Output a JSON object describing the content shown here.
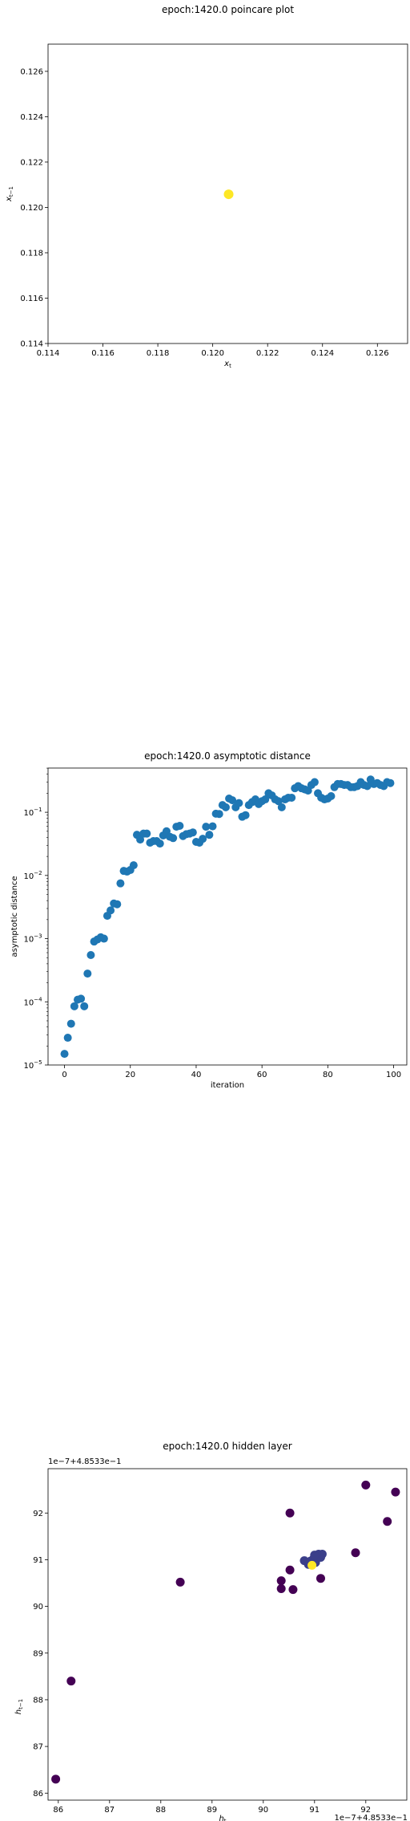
{
  "chart_data": [
    {
      "type": "scatter",
      "title": "epoch:1420.0 poincare plot",
      "xlabel": "x_t",
      "ylabel": "x_{t-1}",
      "xlim": [
        0.114,
        0.1271
      ],
      "ylim": [
        0.114,
        0.1272
      ],
      "xticks": [
        "0.114",
        "0.116",
        "0.118",
        "0.120",
        "0.122",
        "0.124",
        "0.126"
      ],
      "yticks": [
        "0.114",
        "0.116",
        "0.118",
        "0.120",
        "0.122",
        "0.124",
        "0.126"
      ],
      "xtick_values": [
        0.114,
        0.116,
        0.118,
        0.12,
        0.122,
        0.124,
        0.126
      ],
      "ytick_values": [
        0.114,
        0.116,
        0.118,
        0.12,
        0.122,
        0.124,
        0.126
      ],
      "points": [
        {
          "x": 0.12058,
          "y": 0.12058,
          "color": "#fde725"
        }
      ]
    },
    {
      "type": "scatter",
      "title": "epoch:1420.0 asymptotic distance",
      "xlabel": "iteration",
      "ylabel": "asymptotic distance",
      "xlim": [
        -5,
        104
      ],
      "yscale": "log",
      "ylim_log10": [
        -5,
        -0.3
      ],
      "xticks": [
        "0",
        "20",
        "40",
        "60",
        "80",
        "100"
      ],
      "xtick_values": [
        0,
        20,
        40,
        60,
        80,
        100
      ],
      "yticks": [
        {
          "mantissa": "10",
          "exp": "−5",
          "value": -5
        },
        {
          "mantissa": "10",
          "exp": "−4",
          "value": -4
        },
        {
          "mantissa": "10",
          "exp": "−3",
          "value": -3
        },
        {
          "mantissa": "10",
          "exp": "−2",
          "value": -2
        },
        {
          "mantissa": "10",
          "exp": "−1",
          "value": -1
        }
      ],
      "color": "#1f77b4",
      "x": [
        0,
        1,
        2,
        3,
        4,
        5,
        6,
        7,
        8,
        9,
        10,
        11,
        12,
        13,
        14,
        15,
        16,
        17,
        18,
        19,
        20,
        21,
        22,
        23,
        24,
        25,
        26,
        27,
        28,
        29,
        30,
        31,
        32,
        33,
        34,
        35,
        36,
        37,
        38,
        39,
        40,
        41,
        42,
        43,
        44,
        45,
        46,
        47,
        48,
        49,
        50,
        51,
        52,
        53,
        54,
        55,
        56,
        57,
        58,
        59,
        60,
        61,
        62,
        63,
        64,
        65,
        66,
        67,
        68,
        69,
        70,
        71,
        72,
        73,
        74,
        75,
        76,
        77,
        78,
        79,
        80,
        81,
        82,
        83,
        84,
        85,
        86,
        87,
        88,
        89,
        90,
        91,
        92,
        93,
        94,
        95,
        96,
        97,
        98,
        99
      ],
      "y": [
        1.5e-05,
        2.7e-05,
        4.5e-05,
        8.5e-05,
        0.000108,
        0.000112,
        8.5e-05,
        0.00028,
        0.00055,
        0.0009,
        0.00097,
        0.00105,
        0.001,
        0.0023,
        0.0028,
        0.0036,
        0.0035,
        0.0075,
        0.0118,
        0.0115,
        0.0122,
        0.0145,
        0.044,
        0.037,
        0.046,
        0.046,
        0.033,
        0.035,
        0.035,
        0.032,
        0.043,
        0.05,
        0.041,
        0.039,
        0.059,
        0.061,
        0.042,
        0.045,
        0.046,
        0.048,
        0.034,
        0.033,
        0.038,
        0.059,
        0.044,
        0.06,
        0.095,
        0.094,
        0.13,
        0.12,
        0.165,
        0.155,
        0.12,
        0.14,
        0.085,
        0.09,
        0.13,
        0.145,
        0.16,
        0.135,
        0.15,
        0.16,
        0.2,
        0.185,
        0.16,
        0.15,
        0.12,
        0.16,
        0.17,
        0.17,
        0.24,
        0.26,
        0.24,
        0.23,
        0.22,
        0.27,
        0.3,
        0.2,
        0.17,
        0.16,
        0.165,
        0.18,
        0.25,
        0.28,
        0.28,
        0.27,
        0.27,
        0.25,
        0.25,
        0.26,
        0.3,
        0.27,
        0.26,
        0.33,
        0.28,
        0.29,
        0.27,
        0.26,
        0.3,
        0.29
      ]
    },
    {
      "type": "scatter",
      "title": "epoch:1420.0 hidden layer",
      "xlabel": "h_t",
      "ylabel": "h_{t-1}",
      "x_offset_text": "1e−7+4.8533e−1",
      "y_offset_text": "1e−7+4.8533e−1",
      "xlim": [
        85.8,
        92.8
      ],
      "ylim": [
        85.85,
        92.95
      ],
      "xticks": [
        "86",
        "87",
        "88",
        "89",
        "90",
        "91",
        "92"
      ],
      "yticks": [
        "86",
        "87",
        "88",
        "89",
        "90",
        "91",
        "92"
      ],
      "xtick_values": [
        86,
        87,
        88,
        89,
        90,
        91,
        92
      ],
      "ytick_values": [
        86,
        87,
        88,
        89,
        90,
        91,
        92
      ],
      "colors": {
        "dark": "#440154",
        "mid": "#3b3f8a",
        "light": "#fde725"
      },
      "points": [
        {
          "x": 85.95,
          "y": 86.3,
          "c": "dark"
        },
        {
          "x": 86.25,
          "y": 88.4,
          "c": "dark"
        },
        {
          "x": 88.38,
          "y": 90.52,
          "c": "dark"
        },
        {
          "x": 90.35,
          "y": 90.38,
          "c": "dark"
        },
        {
          "x": 90.35,
          "y": 90.55,
          "c": "dark"
        },
        {
          "x": 90.58,
          "y": 90.36,
          "c": "dark"
        },
        {
          "x": 90.52,
          "y": 90.78,
          "c": "dark"
        },
        {
          "x": 90.52,
          "y": 92.0,
          "c": "dark"
        },
        {
          "x": 91.12,
          "y": 90.6,
          "c": "dark"
        },
        {
          "x": 91.8,
          "y": 91.15,
          "c": "dark"
        },
        {
          "x": 92.0,
          "y": 92.6,
          "c": "dark"
        },
        {
          "x": 92.42,
          "y": 91.82,
          "c": "dark"
        },
        {
          "x": 92.58,
          "y": 92.45,
          "c": "dark"
        },
        {
          "x": 90.8,
          "y": 90.98,
          "c": "mid"
        },
        {
          "x": 90.88,
          "y": 90.9,
          "c": "mid"
        },
        {
          "x": 90.92,
          "y": 90.97,
          "c": "mid"
        },
        {
          "x": 90.98,
          "y": 91.02,
          "c": "mid"
        },
        {
          "x": 91.02,
          "y": 90.94,
          "c": "mid"
        },
        {
          "x": 91.05,
          "y": 91.08,
          "c": "mid"
        },
        {
          "x": 91.08,
          "y": 91.12,
          "c": "mid"
        },
        {
          "x": 91.12,
          "y": 91.05,
          "c": "mid"
        },
        {
          "x": 91.15,
          "y": 91.12,
          "c": "mid"
        },
        {
          "x": 91.0,
          "y": 91.1,
          "c": "mid"
        },
        {
          "x": 90.95,
          "y": 90.88,
          "c": "light"
        }
      ]
    }
  ]
}
